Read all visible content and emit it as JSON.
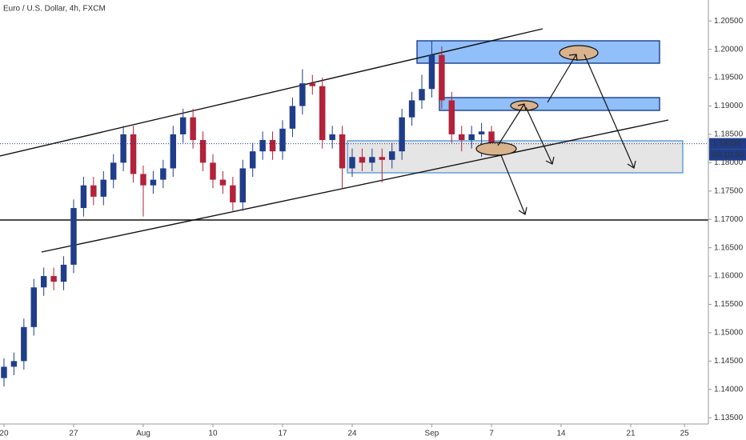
{
  "chart_data": {
    "type": "candlestick",
    "title": "Euro / U.S. Dollar, 4h, FXCM",
    "x": [
      0,
      1,
      2,
      3,
      4,
      5,
      6,
      7,
      8,
      9,
      10,
      11,
      12,
      13,
      14,
      15,
      16,
      17,
      18,
      19,
      20,
      21,
      22,
      23,
      24,
      25,
      26,
      27,
      28,
      29,
      30,
      31,
      32,
      33,
      34,
      35,
      36,
      37,
      38,
      39,
      40,
      41,
      42,
      43,
      44,
      45,
      46,
      47,
      48,
      49
    ],
    "open": [
      1.142,
      1.144,
      1.145,
      1.151,
      1.158,
      1.16,
      1.159,
      1.162,
      1.172,
      1.176,
      1.174,
      1.177,
      1.18,
      1.185,
      1.178,
      1.176,
      1.177,
      1.179,
      1.185,
      1.188,
      1.184,
      1.18,
      1.177,
      1.176,
      1.173,
      1.179,
      1.182,
      1.184,
      1.182,
      1.186,
      1.19,
      1.194,
      1.1935,
      1.184,
      1.185,
      1.179,
      1.181,
      1.18,
      1.181,
      1.1805,
      1.182,
      1.188,
      1.191,
      1.193,
      1.199,
      1.191,
      1.185,
      1.184,
      1.185,
      1.1855
    ],
    "high": [
      1.1455,
      1.1465,
      1.1525,
      1.1595,
      1.1615,
      1.1615,
      1.1635,
      1.1735,
      1.1775,
      1.1775,
      1.1785,
      1.1815,
      1.1865,
      1.1865,
      1.1795,
      1.1785,
      1.1805,
      1.1865,
      1.1895,
      1.1895,
      1.1855,
      1.1815,
      1.1785,
      1.1775,
      1.1805,
      1.1835,
      1.1855,
      1.1855,
      1.1875,
      1.1915,
      1.1965,
      1.1955,
      1.195,
      1.1865,
      1.1865,
      1.1825,
      1.1825,
      1.1825,
      1.1825,
      1.1835,
      1.1895,
      1.1925,
      1.1955,
      1.2015,
      1.2005,
      1.1925,
      1.1865,
      1.1865,
      1.187,
      1.1865
    ],
    "low": [
      1.1405,
      1.1425,
      1.1435,
      1.1495,
      1.1565,
      1.1575,
      1.1575,
      1.1605,
      1.1705,
      1.1725,
      1.1725,
      1.1755,
      1.1785,
      1.1765,
      1.1705,
      1.1745,
      1.1755,
      1.1775,
      1.1835,
      1.1825,
      1.1785,
      1.1755,
      1.1745,
      1.1715,
      1.1715,
      1.1775,
      1.1805,
      1.1805,
      1.1805,
      1.1845,
      1.1885,
      1.192,
      1.1825,
      1.1825,
      1.1755,
      1.1775,
      1.1785,
      1.1785,
      1.1765,
      1.179,
      1.1805,
      1.1865,
      1.1895,
      1.1915,
      1.1895,
      1.1835,
      1.182,
      1.1825,
      1.181,
      1.1825
    ],
    "close": [
      1.144,
      1.145,
      1.151,
      1.158,
      1.16,
      1.159,
      1.162,
      1.172,
      1.176,
      1.174,
      1.177,
      1.18,
      1.185,
      1.178,
      1.176,
      1.177,
      1.179,
      1.185,
      1.188,
      1.184,
      1.18,
      1.177,
      1.176,
      1.173,
      1.179,
      1.182,
      1.184,
      1.182,
      1.186,
      1.19,
      1.194,
      1.1935,
      1.184,
      1.185,
      1.179,
      1.181,
      1.18,
      1.181,
      1.1805,
      1.182,
      1.188,
      1.191,
      1.193,
      1.199,
      1.191,
      1.185,
      1.184,
      1.185,
      1.1855,
      1.18335
    ],
    "up_color": "#1f3d8a",
    "down_color": "#b2223a",
    "last_price": 1.18335,
    "countdown": "03:10:30",
    "xlim": [
      -0.4,
      70.8
    ],
    "xticks": [
      {
        "value": 0,
        "label": "20"
      },
      {
        "value": 7,
        "label": "27"
      },
      {
        "value": 14,
        "label": "Aug"
      },
      {
        "value": 21,
        "label": "10"
      },
      {
        "value": 28,
        "label": "17"
      },
      {
        "value": 35,
        "label": "24"
      },
      {
        "value": 43,
        "label": "Sep"
      },
      {
        "value": 49,
        "label": "7"
      },
      {
        "value": 56,
        "label": "14"
      },
      {
        "value": 63,
        "label": "21"
      },
      {
        "value": 68.4,
        "label": "25"
      }
    ],
    "ylim": [
      1.1339,
      1.2087
    ],
    "yticks": [
      {
        "value": 1.135,
        "label": "1.13500"
      },
      {
        "value": 1.14,
        "label": "1.14000"
      },
      {
        "value": 1.145,
        "label": "1.14500"
      },
      {
        "value": 1.15,
        "label": "1.15000"
      },
      {
        "value": 1.155,
        "label": "1.15500"
      },
      {
        "value": 1.16,
        "label": "1.16000"
      },
      {
        "value": 1.165,
        "label": "1.16500"
      },
      {
        "value": 1.17,
        "label": "1.17000"
      },
      {
        "value": 1.175,
        "label": "1.17500"
      },
      {
        "value": 1.18,
        "label": "1.18000"
      },
      {
        "value": 1.185,
        "label": "1.18500"
      },
      {
        "value": 1.19,
        "label": "1.19000"
      },
      {
        "value": 1.195,
        "label": "1.19500"
      },
      {
        "value": 1.2,
        "label": "1.20000"
      },
      {
        "value": 1.205,
        "label": "1.20500"
      }
    ]
  }
}
